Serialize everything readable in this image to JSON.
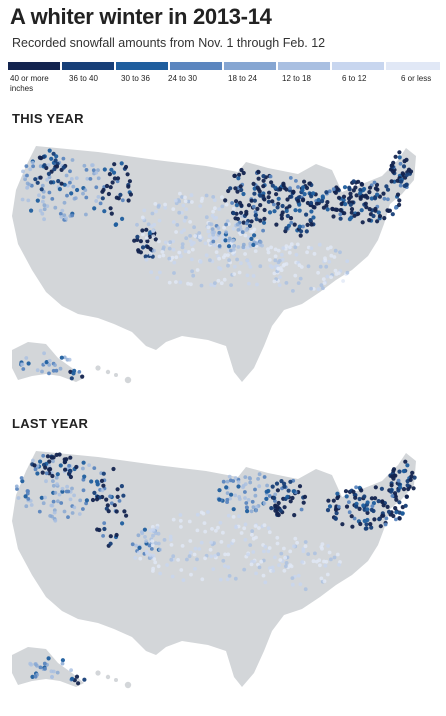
{
  "header": {
    "title": "A whiter winter in 2013-14",
    "subtitle": "Recorded snowfall amounts from Nov. 1 through Feb. 12"
  },
  "legend": [
    {
      "label": "40 or more",
      "unit": "inches",
      "color": "#13244f"
    },
    {
      "label": "36 to 40",
      "color": "#173f78"
    },
    {
      "label": "30 to 36",
      "color": "#1f5e9e"
    },
    {
      "label": "24 to 30",
      "color": "#5b86bf"
    },
    {
      "label": "18 to 24",
      "color": "#86a6d2"
    },
    {
      "label": "12 to 18",
      "color": "#a9bfe1"
    },
    {
      "label": "6 to 12",
      "color": "#c8d6ef"
    },
    {
      "label": "6 or less",
      "color": "#e1e8f6"
    }
  ],
  "maps": [
    {
      "label": "THIS YEAR"
    },
    {
      "label": "LAST YEAR"
    }
  ],
  "colors": {
    "land": "#d3d6d9",
    "background": "#ffffff",
    "text": "#222222"
  }
}
